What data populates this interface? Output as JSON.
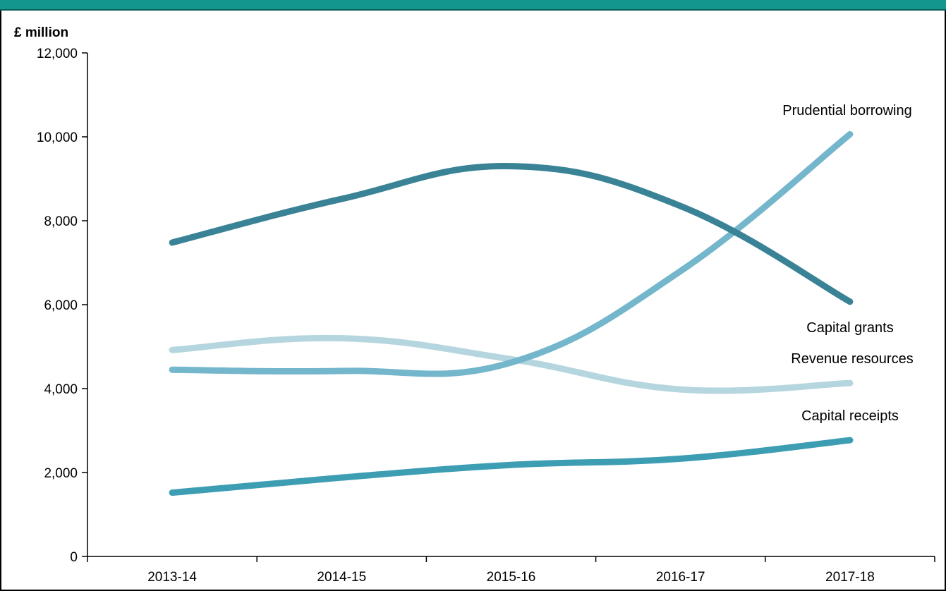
{
  "chart_data": {
    "type": "line",
    "ylabel": "£ million",
    "xlabel": "",
    "ylim": [
      0,
      12000
    ],
    "yticks": [
      0,
      2000,
      4000,
      6000,
      8000,
      10000,
      12000
    ],
    "ytick_labels": [
      "0",
      "2,000",
      "4,000",
      "6,000",
      "8,000",
      "10,000",
      "12,000"
    ],
    "categories": [
      "2013-14",
      "2014-15",
      "2015-16",
      "2016-17",
      "2017-18"
    ],
    "grid": false,
    "legend": "inline labels at line ends",
    "series": [
      {
        "name": "Capital grants",
        "values": [
          7480,
          8520,
          9300,
          8350,
          6070
        ],
        "color": "#3a8296"
      },
      {
        "name": "Prudential borrowing",
        "values": [
          4450,
          4420,
          4620,
          6800,
          10060
        ],
        "color": "#74b6cb"
      },
      {
        "name": "Revenue resources",
        "values": [
          4920,
          5200,
          4700,
          3980,
          4130
        ],
        "color": "#b5d6df"
      },
      {
        "name": "Capital receipts",
        "values": [
          1520,
          1880,
          2180,
          2330,
          2770
        ],
        "color": "#3d9db3"
      }
    ]
  }
}
